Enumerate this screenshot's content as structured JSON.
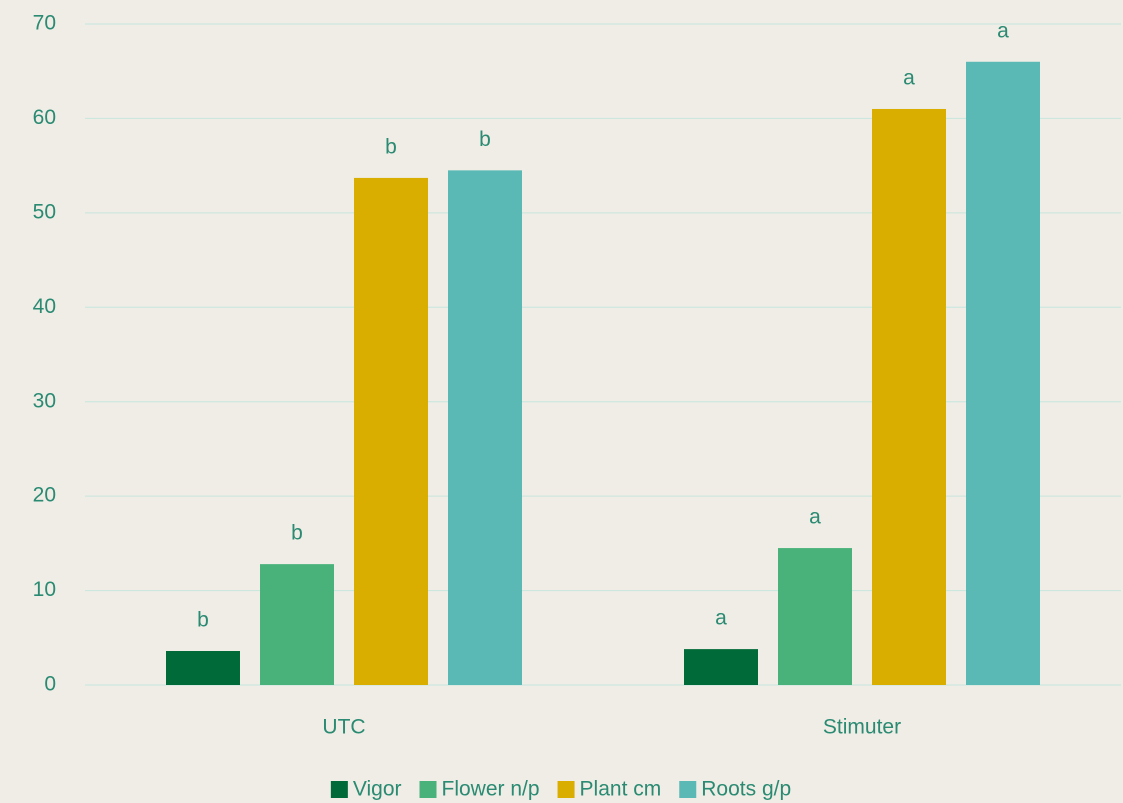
{
  "chart_data": {
    "type": "bar",
    "categories": [
      "UTC",
      "Stimuter"
    ],
    "series": [
      {
        "name": "Vigor",
        "color": "#006a38",
        "values": [
          3.6,
          3.8
        ],
        "letters": [
          "b",
          "a"
        ]
      },
      {
        "name": "Flower n/p",
        "color": "#48b27a",
        "values": [
          12.8,
          14.5
        ],
        "letters": [
          "b",
          "a"
        ]
      },
      {
        "name": "Plant cm",
        "color": "#d9ae00",
        "values": [
          53.7,
          61.0
        ],
        "letters": [
          "b",
          "a"
        ]
      },
      {
        "name": "Roots g/p",
        "color": "#5bb9b5",
        "values": [
          54.5,
          66.0
        ],
        "letters": [
          "b",
          "a"
        ]
      }
    ],
    "ylim": [
      0,
      70
    ],
    "yticks": [
      0,
      10,
      20,
      30,
      40,
      50,
      60,
      70
    ],
    "grid": true,
    "legend": "bottom"
  }
}
